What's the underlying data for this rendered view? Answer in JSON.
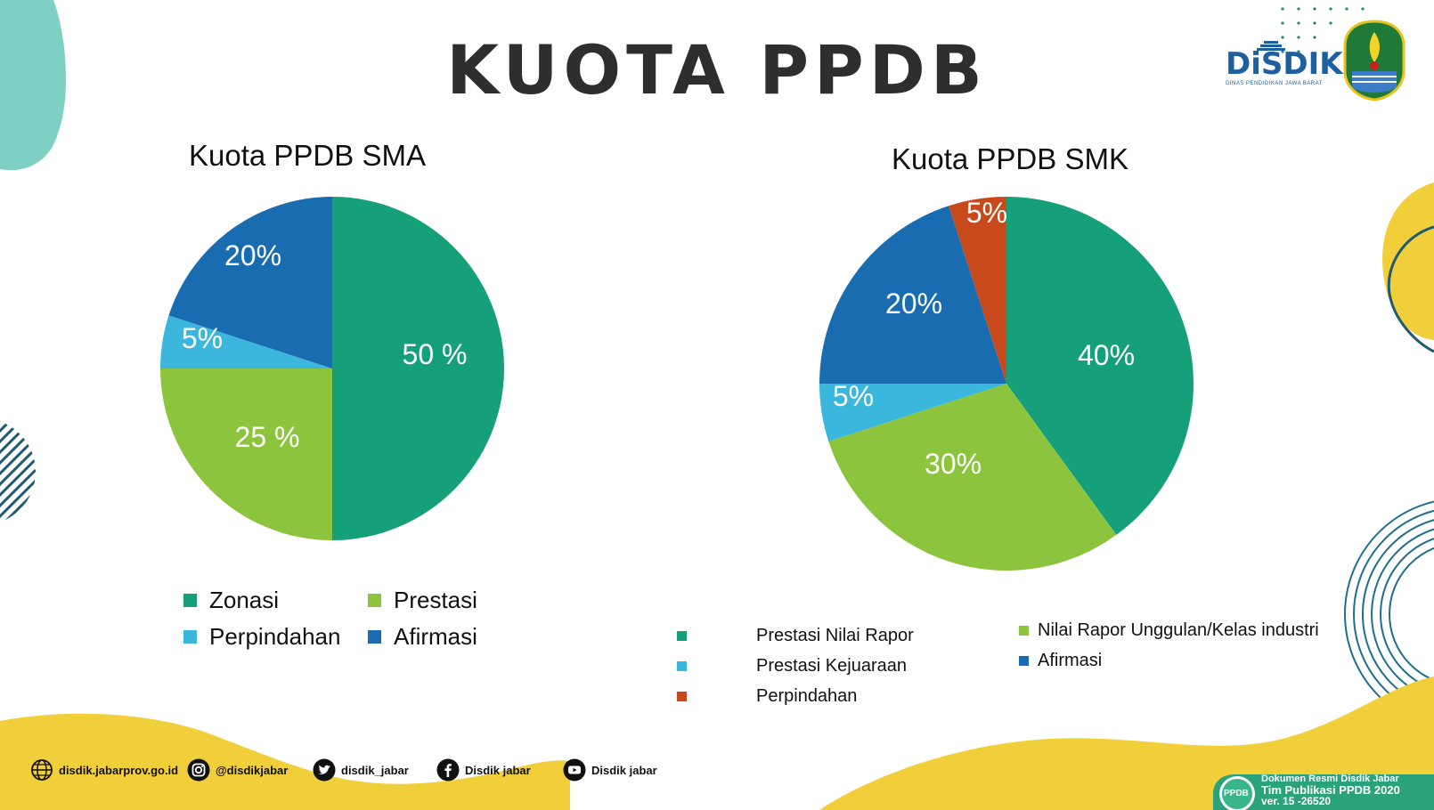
{
  "title": "KUOTA PPDB",
  "logo": {
    "text": "DiSDIK",
    "subtext": "DINAS PENDIDIKAN JAWA BARAT",
    "emblem_icon": "west-java-emblem-icon"
  },
  "colors": {
    "zonasi": "#16a07a",
    "prestasi": "#8cc43e",
    "perpindahan_sma": "#3bb6dc",
    "afirmasi": "#1a6cb0",
    "perpindahan_smk": "#c84a1c",
    "accent_yellow": "#f0cf3a",
    "accent_teal": "#7fd0c4",
    "title": "#2e2e2e"
  },
  "chart_data": [
    {
      "type": "pie",
      "title": "Kuota PPDB  SMA",
      "slices": [
        {
          "name": "Zonasi",
          "value": 50,
          "label": "50 %",
          "color": "#16a07a"
        },
        {
          "name": "Prestasi",
          "value": 25,
          "label": "25 %",
          "color": "#8cc43e"
        },
        {
          "name": "Perpindahan",
          "value": 5,
          "label": "5%",
          "color": "#3bb6dc"
        },
        {
          "name": "Afirmasi",
          "value": 20,
          "label": "20%",
          "color": "#1a6cb0"
        }
      ],
      "legend": [
        "Zonasi",
        "Prestasi",
        "Perpindahan",
        "Afirmasi"
      ]
    },
    {
      "type": "pie",
      "title": "Kuota PPDB  SMK",
      "slices": [
        {
          "name": "Prestasi Nilai  Rapor",
          "value": 40,
          "label": "40%",
          "color": "#16a07a"
        },
        {
          "name": "Nilai Rapor Unggulan/Kelas industri",
          "value": 30,
          "label": "30%",
          "color": "#8cc43e"
        },
        {
          "name": "Prestasi  Kejuaraan",
          "value": 5,
          "label": "5%",
          "color": "#3bb6dc"
        },
        {
          "name": "Afirmasi",
          "value": 20,
          "label": "20%",
          "color": "#1a6cb0"
        },
        {
          "name": "Perpindahan",
          "value": 5,
          "label": "5%",
          "color": "#c84a1c"
        }
      ],
      "legend": [
        "Prestasi Nilai  Rapor",
        "Nilai Rapor Unggulan/Kelas industri",
        "Prestasi  Kejuaraan",
        "Afirmasi",
        "Perpindahan"
      ]
    }
  ],
  "footer": {
    "links": [
      {
        "icon": "globe-icon",
        "text": "disdik.jabarprov.go.id"
      },
      {
        "icon": "instagram-icon",
        "text": "@disdikjabar"
      },
      {
        "icon": "twitter-icon",
        "text": "disdik_jabar"
      },
      {
        "icon": "facebook-icon",
        "text": "Disdik jabar"
      },
      {
        "icon": "youtube-icon",
        "text": "Disdik jabar"
      }
    ],
    "badge": {
      "logo_text": "PPDB",
      "lines": [
        "Dokumen Resmi Disdik Jabar",
        "Tim Publikasi PPDB 2020",
        "ver. 15 -26520"
      ]
    }
  }
}
